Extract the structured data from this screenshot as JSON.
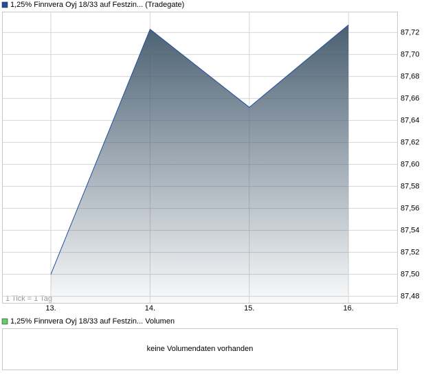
{
  "chart_data": {
    "type": "area",
    "title": "1,25% Finnvera Oyj 18/33 auf Festzin... (Tradegate)",
    "annotation": "1 Tick = 1 Tag",
    "categories": [
      "13.",
      "14.",
      "15.",
      "16."
    ],
    "values": [
      87.5,
      87.723,
      87.652,
      87.727
    ],
    "color": "#4a6072",
    "line_color": "#1f4e9e",
    "ylim": [
      87.474,
      87.739
    ],
    "yticks": [
      {
        "value": 87.48,
        "label": "87,48"
      },
      {
        "value": 87.5,
        "label": "87,50"
      },
      {
        "value": 87.52,
        "label": "87,52"
      },
      {
        "value": 87.54,
        "label": "87,54"
      },
      {
        "value": 87.56,
        "label": "87,56"
      },
      {
        "value": 87.58,
        "label": "87,58"
      },
      {
        "value": 87.6,
        "label": "87,60"
      },
      {
        "value": 87.62,
        "label": "87,62"
      },
      {
        "value": 87.64,
        "label": "87,64"
      },
      {
        "value": 87.66,
        "label": "87,66"
      },
      {
        "value": 87.68,
        "label": "87,68"
      },
      {
        "value": 87.7,
        "label": "87,70"
      },
      {
        "value": 87.72,
        "label": "87,72"
      }
    ],
    "grid": true,
    "volume_panel": {
      "title": "1,25% Finnvera Oyj 18/33 auf Festzin... Volumen",
      "message": "keine Volumendaten vorhanden",
      "color": "#66cc66"
    }
  }
}
